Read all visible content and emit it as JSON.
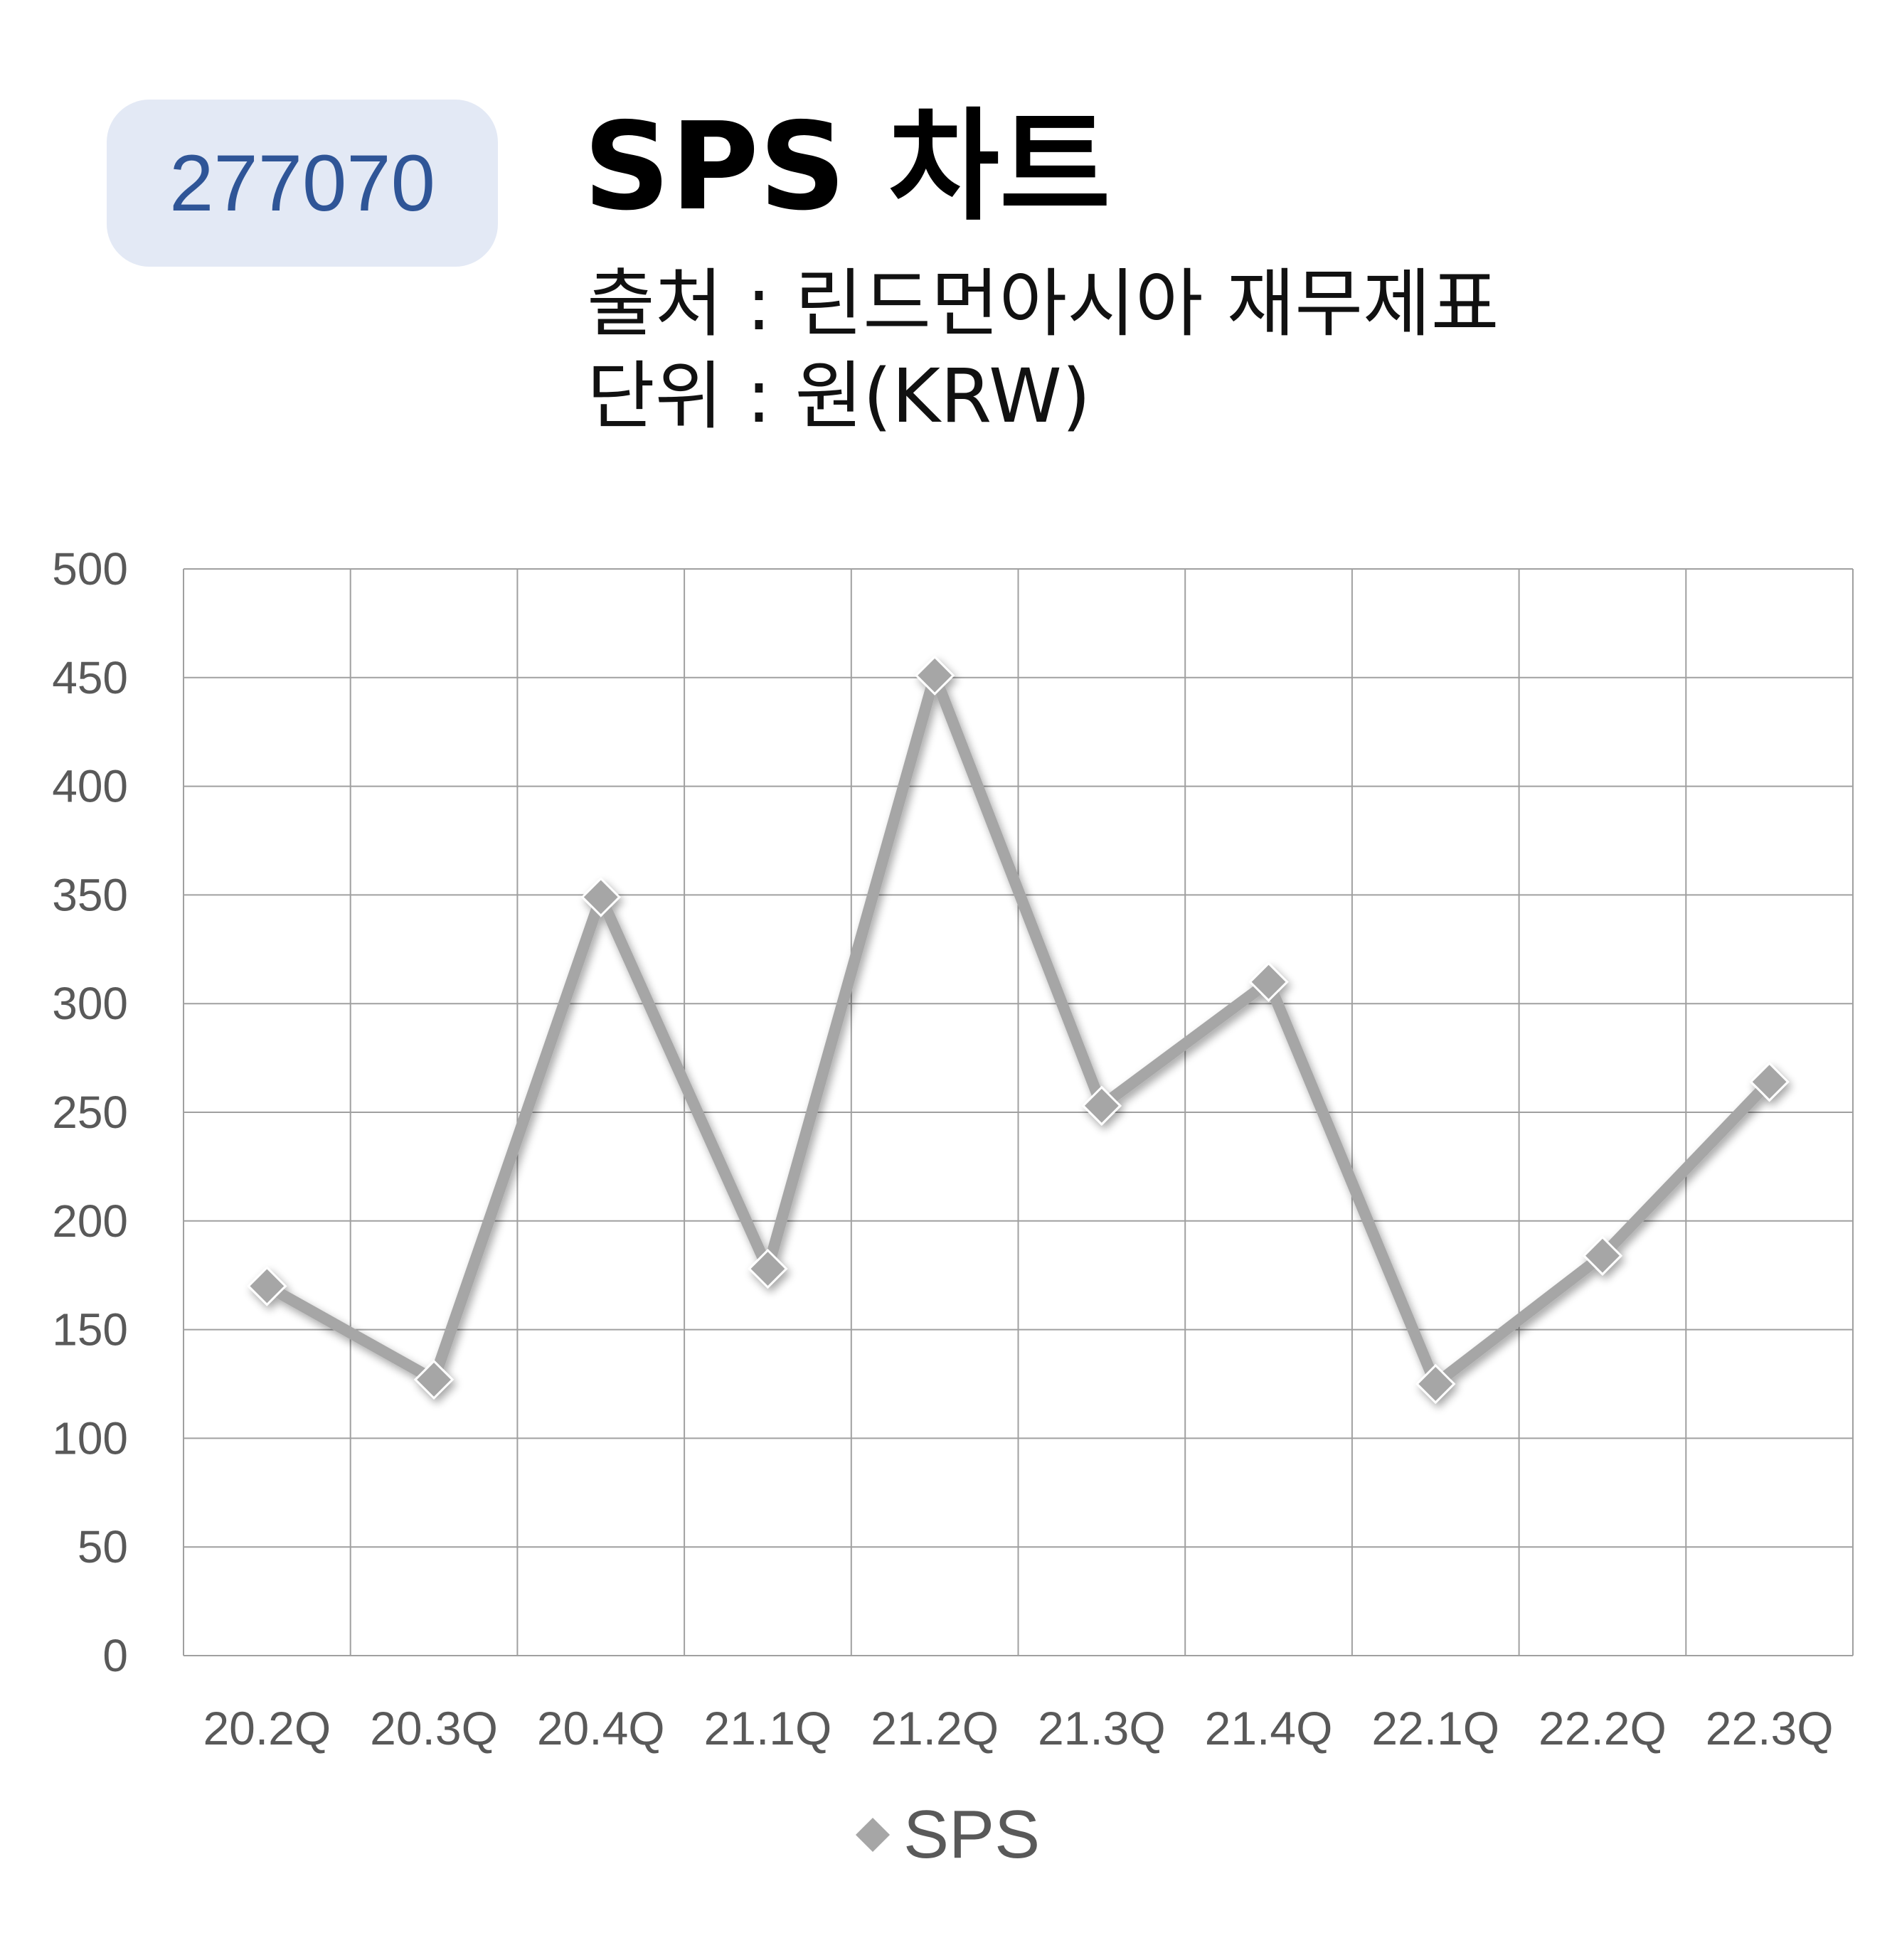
{
  "header": {
    "code": "277070",
    "title": "SPS 차트",
    "source": "출처 : 린드먼아시아 재무제표",
    "unit": "단위 : 원(KRW)"
  },
  "colors": {
    "badge_bg": "#e3e9f5",
    "badge_text": "#2f5597",
    "series": "#a6a6a6",
    "grid": "#a0a0a0",
    "axis_text": "#595959"
  },
  "chart_data": {
    "type": "line",
    "categories": [
      "20.2Q",
      "20.3Q",
      "20.4Q",
      "21.1Q",
      "21.2Q",
      "21.3Q",
      "21.4Q",
      "22.1Q",
      "22.2Q",
      "22.3Q"
    ],
    "series": [
      {
        "name": "SPS",
        "values": [
          170,
          127,
          349,
          178,
          451,
          253,
          310,
          125,
          184,
          264
        ]
      }
    ],
    "ylim": [
      0,
      500
    ],
    "yticks": [
      0,
      50,
      100,
      150,
      200,
      250,
      300,
      350,
      400,
      450,
      500
    ],
    "grid": true,
    "legend": "bottom"
  }
}
